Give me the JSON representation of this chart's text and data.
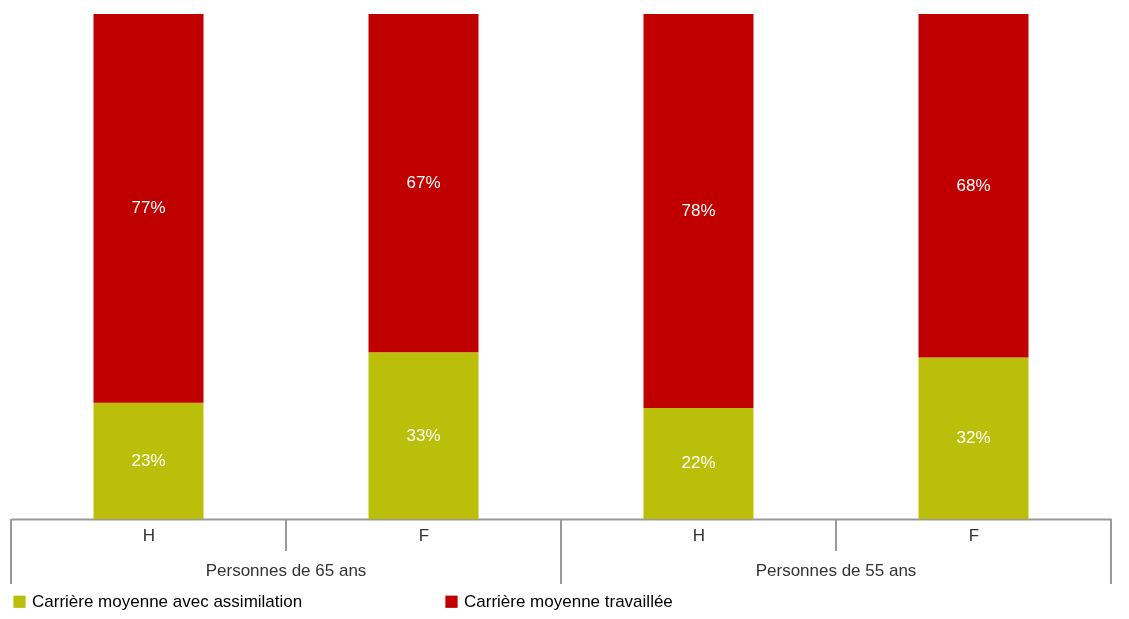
{
  "chart_data": {
    "type": "bar",
    "stacked": true,
    "legend": "bottom",
    "categories": [
      "H",
      "F",
      "H",
      "F"
    ],
    "series": [
      {
        "name": "Carrière moyenne avec assimilation",
        "color": "#bcbf0a",
        "values": [
          23,
          33,
          22,
          32
        ],
        "value_labels": [
          "23%",
          "33%",
          "22%",
          "32%"
        ]
      },
      {
        "name": "Carrière moyenne travaillée",
        "color": "#c00000",
        "values": [
          77,
          67,
          78,
          68
        ],
        "value_labels": [
          "77%",
          "67%",
          "78%",
          "68%"
        ]
      }
    ],
    "annotations": [
      "Personnes de 65 ans",
      "Personnes de 55 ans"
    ]
  }
}
